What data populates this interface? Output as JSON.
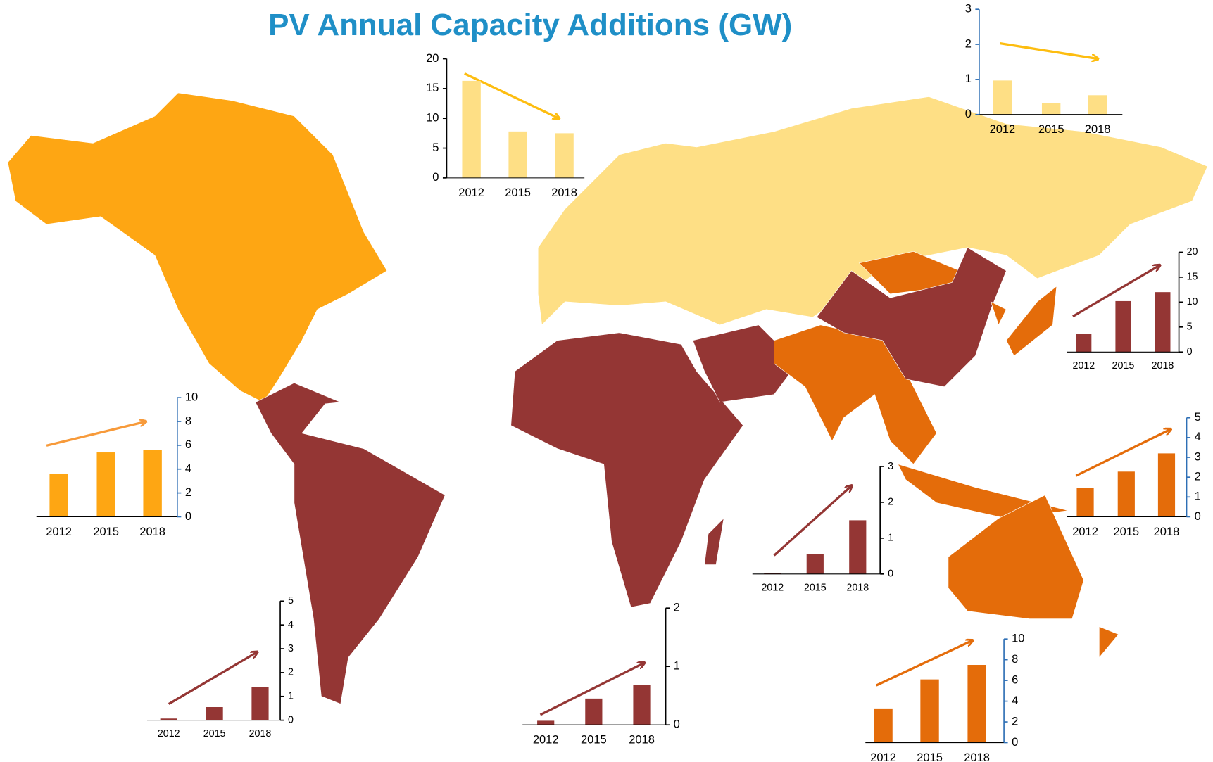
{
  "title": "PV Annual Capacity Additions (GW)",
  "chart_data": [
    {
      "type": "bar",
      "categories": [
        "2012",
        "2015",
        "2018"
      ],
      "values": [
        16.3,
        7.8,
        7.5
      ],
      "color": "#fedf85",
      "axis_color": "#000000",
      "ylim": [
        0,
        20
      ],
      "yticks": [
        0,
        5,
        10,
        15,
        20
      ]
    },
    {
      "type": "bar",
      "categories": [
        "2012",
        "2015",
        "2018"
      ],
      "values": [
        0.97,
        0.32,
        0.55
      ],
      "color": "#fedf85",
      "axis_color": "#2e6fb5",
      "ylim": [
        0,
        3
      ],
      "yticks": [
        0,
        1,
        2,
        3
      ]
    },
    {
      "type": "bar",
      "categories": [
        "2012",
        "2015",
        "2018"
      ],
      "values": [
        3.6,
        10.2,
        12
      ],
      "color": "#943634",
      "axis_color": "#000000",
      "ylim": [
        0,
        20
      ],
      "yticks": [
        0,
        5,
        10,
        15,
        20
      ]
    },
    {
      "type": "bar",
      "categories": [
        "2012",
        "2015",
        "2018"
      ],
      "values": [
        1.45,
        2.28,
        3.2
      ],
      "color": "#e46c0a",
      "axis_color": "#2e6fb5",
      "ylim": [
        0,
        5
      ],
      "yticks": [
        0,
        1,
        2,
        3,
        4,
        5
      ]
    },
    {
      "type": "bar",
      "categories": [
        "2012",
        "2015",
        "2018"
      ],
      "values": [
        3.3,
        6.1,
        7.5
      ],
      "color": "#e46c0a",
      "axis_color": "#2e6fb5",
      "ylim": [
        0,
        10
      ],
      "yticks": [
        0,
        2,
        4,
        6,
        8,
        10
      ]
    },
    {
      "type": "bar",
      "categories": [
        "2012",
        "2015",
        "2018"
      ],
      "values": [
        0.02,
        0.55,
        1.5
      ],
      "color": "#943634",
      "axis_color": "#000000",
      "ylim": [
        0,
        3
      ],
      "yticks": [
        0,
        1,
        2,
        3
      ]
    },
    {
      "type": "bar",
      "categories": [
        "2012",
        "2015",
        "2018"
      ],
      "values": [
        0.07,
        0.45,
        0.68
      ],
      "color": "#943634",
      "axis_color": "#000000",
      "ylim": [
        0,
        2
      ],
      "yticks": [
        0,
        1,
        2
      ]
    },
    {
      "type": "bar",
      "categories": [
        "2012",
        "2015",
        "2018"
      ],
      "values": [
        0.07,
        0.55,
        1.38
      ],
      "color": "#943634",
      "axis_color": "#000000",
      "ylim": [
        0,
        5
      ],
      "yticks": [
        0,
        1,
        2,
        3,
        4,
        5
      ]
    },
    {
      "type": "bar",
      "categories": [
        "2012",
        "2015",
        "2018"
      ],
      "values": [
        3.6,
        5.4,
        5.6
      ],
      "color": "#fea613",
      "axis_color": "#2e6fb5",
      "ylim": [
        0,
        10
      ],
      "yticks": [
        0,
        2,
        4,
        6,
        8,
        10
      ]
    }
  ]
}
